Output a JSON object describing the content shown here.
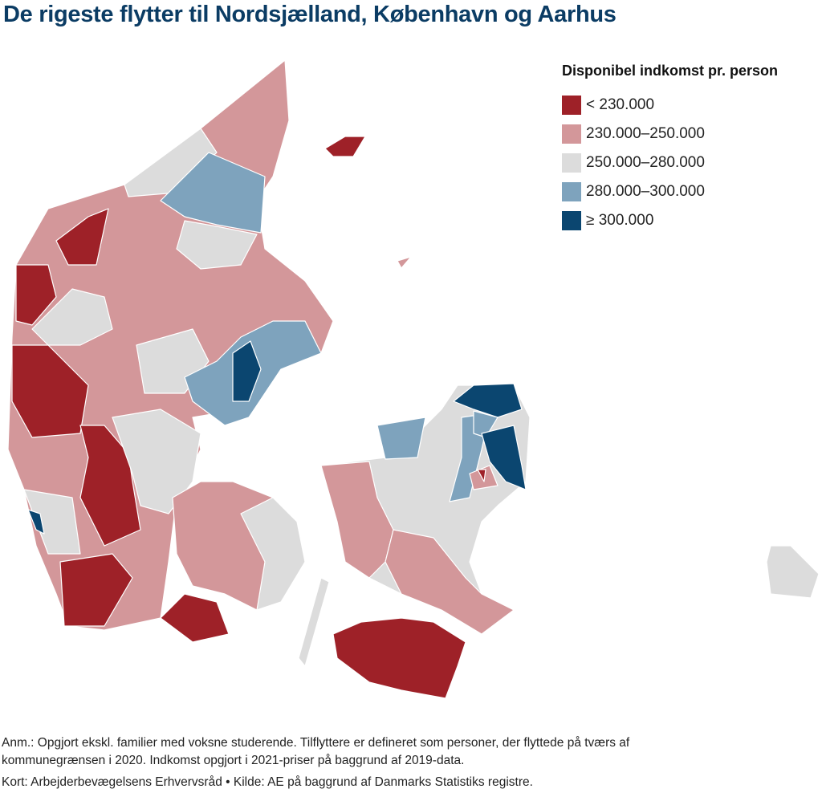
{
  "title": "De rigeste flytter til Nordsjælland, København og Aarhus",
  "legend": {
    "title": "Disponibel indkomst pr. person",
    "items": [
      {
        "label": "< 230.000",
        "color": "#9e2128"
      },
      {
        "label": "230.000–250.000",
        "color": "#d3979a"
      },
      {
        "label": "250.000–280.000",
        "color": "#dcdcdc"
      },
      {
        "label": "280.000–300.000",
        "color": "#7ea3bd"
      },
      {
        "label": "≥ 300.000",
        "color": "#0b4670"
      }
    ]
  },
  "notes": [
    "Anm.: Opgjort ekskl. familier med voksne studerende. Tilflyttere er defineret som personer, der flyttede på tværs af",
    "kommunegrænsen i 2020. Indkomst opgjort i 2021-priser på baggrund af 2019-data."
  ],
  "source": "Kort: Arbejderbevægelsens Erhvervsråd • Kilde: AE på baggrund af Danmarks Statistiks registre."
}
